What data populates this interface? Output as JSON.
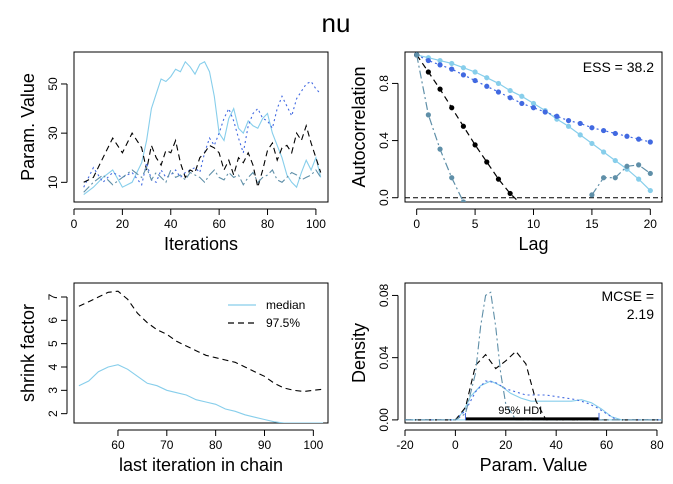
{
  "title": "nu",
  "chart_data": [
    {
      "type": "line",
      "panel": "trace",
      "xlabel": "Iterations",
      "ylabel": "Param. Value",
      "xlim": [
        0,
        105
      ],
      "ylim": [
        2,
        63
      ],
      "xticks": [
        0,
        20,
        40,
        60,
        80,
        100
      ],
      "yticks": [
        10,
        30,
        50
      ],
      "series": [
        {
          "color": "#87ceeb",
          "dash": "solid",
          "x": [
            4,
            8,
            12,
            16,
            20,
            24,
            28,
            30,
            32,
            34,
            36,
            38,
            40,
            42,
            44,
            46,
            48,
            50,
            52,
            54,
            56,
            58,
            60,
            62,
            64,
            66,
            68,
            70,
            72,
            74,
            76,
            78,
            80,
            82,
            84,
            86,
            88,
            90,
            92,
            94,
            96,
            98,
            100,
            102
          ],
          "y": [
            5,
            8,
            12,
            15,
            8,
            10,
            18,
            27,
            40,
            46,
            52,
            51,
            53,
            56,
            55,
            59,
            57,
            54,
            58,
            59,
            55,
            45,
            30,
            27,
            36,
            40,
            32,
            30,
            35,
            33,
            32,
            36,
            38,
            30,
            25,
            20,
            13,
            10,
            8,
            14,
            19,
            15,
            20,
            12
          ]
        },
        {
          "color": "#4169e1",
          "dash": "dot",
          "x": [
            4,
            8,
            12,
            16,
            20,
            24,
            28,
            30,
            32,
            34,
            36,
            38,
            40,
            42,
            44,
            46,
            48,
            50,
            52,
            54,
            56,
            58,
            60,
            62,
            64,
            66,
            68,
            70,
            72,
            74,
            76,
            78,
            80,
            82,
            84,
            86,
            88,
            90,
            92,
            94,
            96,
            98,
            100,
            102
          ],
          "y": [
            8,
            16,
            10,
            14,
            12,
            14,
            9,
            18,
            11,
            10,
            15,
            12,
            13,
            15,
            12,
            14,
            15,
            16,
            14,
            22,
            28,
            25,
            30,
            36,
            40,
            35,
            28,
            22,
            33,
            38,
            40,
            36,
            35,
            32,
            40,
            45,
            41,
            37,
            44,
            47,
            50,
            51,
            48,
            46
          ]
        },
        {
          "color": "#000000",
          "dash": "dash",
          "x": [
            4,
            8,
            12,
            16,
            20,
            24,
            28,
            30,
            32,
            34,
            36,
            38,
            40,
            42,
            44,
            46,
            48,
            50,
            52,
            54,
            56,
            58,
            60,
            62,
            64,
            66,
            68,
            70,
            72,
            74,
            76,
            78,
            80,
            82,
            84,
            86,
            88,
            90,
            92,
            94,
            96,
            98,
            100,
            102
          ],
          "y": [
            10,
            12,
            20,
            28,
            22,
            30,
            24,
            15,
            25,
            20,
            17,
            23,
            22,
            27,
            18,
            12,
            15,
            14,
            20,
            22,
            25,
            24,
            22,
            15,
            19,
            13,
            20,
            18,
            22,
            17,
            8,
            15,
            23,
            26,
            19,
            24,
            25,
            22,
            30,
            27,
            33,
            26,
            20,
            14
          ]
        },
        {
          "color": "#5f8fa8",
          "dash": "dashdot",
          "x": [
            4,
            8,
            12,
            16,
            20,
            24,
            28,
            30,
            32,
            34,
            36,
            38,
            40,
            42,
            44,
            46,
            48,
            50,
            52,
            54,
            56,
            58,
            60,
            62,
            64,
            66,
            68,
            70,
            72,
            74,
            76,
            78,
            80,
            82,
            84,
            86,
            88,
            90,
            92,
            94,
            96,
            98,
            100,
            102
          ],
          "y": [
            6,
            10,
            13,
            9,
            12,
            15,
            12,
            16,
            11,
            14,
            12,
            10,
            15,
            12,
            13,
            11,
            14,
            13,
            12,
            10,
            13,
            15,
            12,
            11,
            14,
            12,
            13,
            9,
            12,
            14,
            10,
            12,
            13,
            15,
            11,
            10,
            12,
            14,
            13,
            11,
            12,
            13,
            15,
            12
          ]
        }
      ]
    },
    {
      "type": "line",
      "panel": "autocorrelation",
      "xlabel": "Lag",
      "ylabel": "Autocorrelation",
      "xlim": [
        -1,
        21
      ],
      "ylim": [
        -0.03,
        1.02
      ],
      "xticks": [
        0,
        5,
        10,
        15,
        20
      ],
      "yticks": [
        0.0,
        0.4,
        0.8
      ],
      "annotation": "ESS = 38.2",
      "series": [
        {
          "color": "#87ceeb",
          "dash": "solid",
          "lags": [
            0,
            1,
            2,
            3,
            4,
            5,
            6,
            7,
            8,
            9,
            10,
            11,
            12,
            13,
            14,
            15,
            16,
            17,
            18,
            19,
            20
          ],
          "values": [
            1.0,
            0.98,
            0.96,
            0.94,
            0.91,
            0.88,
            0.84,
            0.8,
            0.75,
            0.71,
            0.66,
            0.61,
            0.55,
            0.5,
            0.44,
            0.38,
            0.32,
            0.26,
            0.2,
            0.13,
            0.05
          ]
        },
        {
          "color": "#4169e1",
          "dash": "dot",
          "lags": [
            0,
            1,
            2,
            3,
            4,
            5,
            6,
            7,
            8,
            9,
            10,
            11,
            12,
            13,
            14,
            15,
            16,
            17,
            18,
            19,
            20
          ],
          "values": [
            1.0,
            0.96,
            0.93,
            0.9,
            0.86,
            0.82,
            0.78,
            0.74,
            0.7,
            0.66,
            0.63,
            0.6,
            0.57,
            0.54,
            0.52,
            0.49,
            0.47,
            0.45,
            0.43,
            0.41,
            0.39
          ]
        },
        {
          "color": "#000000",
          "dash": "dash",
          "lags": [
            0,
            1,
            2,
            3,
            4,
            5,
            6,
            7,
            8,
            9
          ],
          "values": [
            1.0,
            0.88,
            0.76,
            0.63,
            0.5,
            0.37,
            0.25,
            0.13,
            0.03,
            -0.05
          ]
        },
        {
          "color": "#5f8fa8",
          "dash": "dashdot",
          "lags": [
            0,
            1,
            2,
            3,
            4,
            15,
            16,
            17,
            18,
            19,
            20
          ],
          "values": [
            1.0,
            0.58,
            0.34,
            0.14,
            -0.03,
            0.02,
            0.14,
            0.14,
            0.22,
            0.23,
            0.17
          ]
        }
      ]
    },
    {
      "type": "line",
      "panel": "shrink",
      "xlabel": "last iteration in chain",
      "ylabel": "shrink factor",
      "xlim": [
        51,
        103
      ],
      "ylim": [
        1.6,
        7.6
      ],
      "xticks": [
        60,
        70,
        80,
        90,
        100
      ],
      "yticks": [
        2,
        3,
        4,
        5,
        6,
        7
      ],
      "legend": [
        "median",
        "97.5%"
      ],
      "series": [
        {
          "name": "median",
          "color": "#87ceeb",
          "dash": "solid",
          "x": [
            52,
            54,
            56,
            58,
            60,
            62,
            64,
            66,
            68,
            70,
            72,
            74,
            76,
            78,
            80,
            82,
            84,
            86,
            88,
            90,
            92,
            94,
            96,
            98,
            100,
            102
          ],
          "y": [
            3.2,
            3.4,
            3.8,
            4.0,
            4.1,
            3.9,
            3.6,
            3.3,
            3.2,
            3.0,
            2.9,
            2.8,
            2.6,
            2.5,
            2.4,
            2.2,
            2.1,
            1.95,
            1.85,
            1.75,
            1.65,
            1.6,
            1.6,
            1.6,
            1.6,
            1.6
          ]
        },
        {
          "name": "97.5%",
          "color": "#000000",
          "dash": "dash",
          "x": [
            52,
            54,
            56,
            58,
            60,
            62,
            64,
            66,
            68,
            70,
            72,
            74,
            76,
            78,
            80,
            82,
            84,
            86,
            88,
            90,
            92,
            94,
            96,
            98,
            100,
            102
          ],
          "y": [
            6.6,
            6.8,
            7.0,
            7.2,
            7.25,
            6.9,
            6.3,
            5.9,
            5.6,
            5.4,
            5.1,
            4.9,
            4.7,
            4.5,
            4.4,
            4.3,
            4.2,
            4.0,
            3.8,
            3.6,
            3.3,
            3.1,
            3.0,
            2.95,
            3.0,
            3.05
          ]
        }
      ]
    },
    {
      "type": "line",
      "panel": "density",
      "xlabel": "Param. Value",
      "ylabel": "Density",
      "xlim": [
        -20,
        82
      ],
      "ylim": [
        -0.002,
        0.088
      ],
      "xticks": [
        -20,
        0,
        20,
        40,
        60,
        80
      ],
      "yticks": [
        0.0,
        0.04,
        0.08
      ],
      "annotation": [
        "MCSE =",
        "2.19"
      ],
      "hdi_label": "95% HDI",
      "hdi_range": [
        4,
        57
      ],
      "series": [
        {
          "color": "#87ceeb",
          "dash": "solid",
          "x": [
            -20,
            0,
            3,
            6,
            10,
            14,
            18,
            22,
            26,
            30,
            34,
            38,
            42,
            46,
            50,
            54,
            58,
            62,
            66,
            70,
            82
          ],
          "y": [
            0,
            0,
            0.005,
            0.015,
            0.022,
            0.025,
            0.022,
            0.017,
            0.014,
            0.012,
            0.012,
            0.012,
            0.012,
            0.012,
            0.013,
            0.011,
            0.007,
            0.002,
            0,
            0,
            0
          ]
        },
        {
          "color": "#4169e1",
          "dash": "dot",
          "x": [
            -20,
            0,
            4,
            8,
            12,
            16,
            20,
            24,
            28,
            32,
            36,
            40,
            44,
            48,
            52,
            56,
            60,
            64,
            82
          ],
          "y": [
            0,
            0,
            0.006,
            0.018,
            0.025,
            0.024,
            0.02,
            0.018,
            0.016,
            0.016,
            0.016,
            0.015,
            0.014,
            0.013,
            0.011,
            0.008,
            0.004,
            0,
            0
          ]
        },
        {
          "color": "#000000",
          "dash": "dash",
          "x": [
            -20,
            0,
            4,
            8,
            12,
            16,
            20,
            24,
            28,
            32,
            36,
            82
          ],
          "y": [
            0,
            0,
            0.008,
            0.035,
            0.042,
            0.033,
            0.038,
            0.044,
            0.036,
            0.012,
            0,
            0
          ]
        },
        {
          "color": "#5f8fa8",
          "dash": "dashdot",
          "x": [
            -20,
            0,
            4,
            8,
            10,
            12,
            14,
            16,
            18,
            20,
            24,
            82
          ],
          "y": [
            0,
            0,
            0.004,
            0.03,
            0.06,
            0.08,
            0.082,
            0.06,
            0.03,
            0.01,
            0,
            0
          ]
        }
      ]
    }
  ]
}
